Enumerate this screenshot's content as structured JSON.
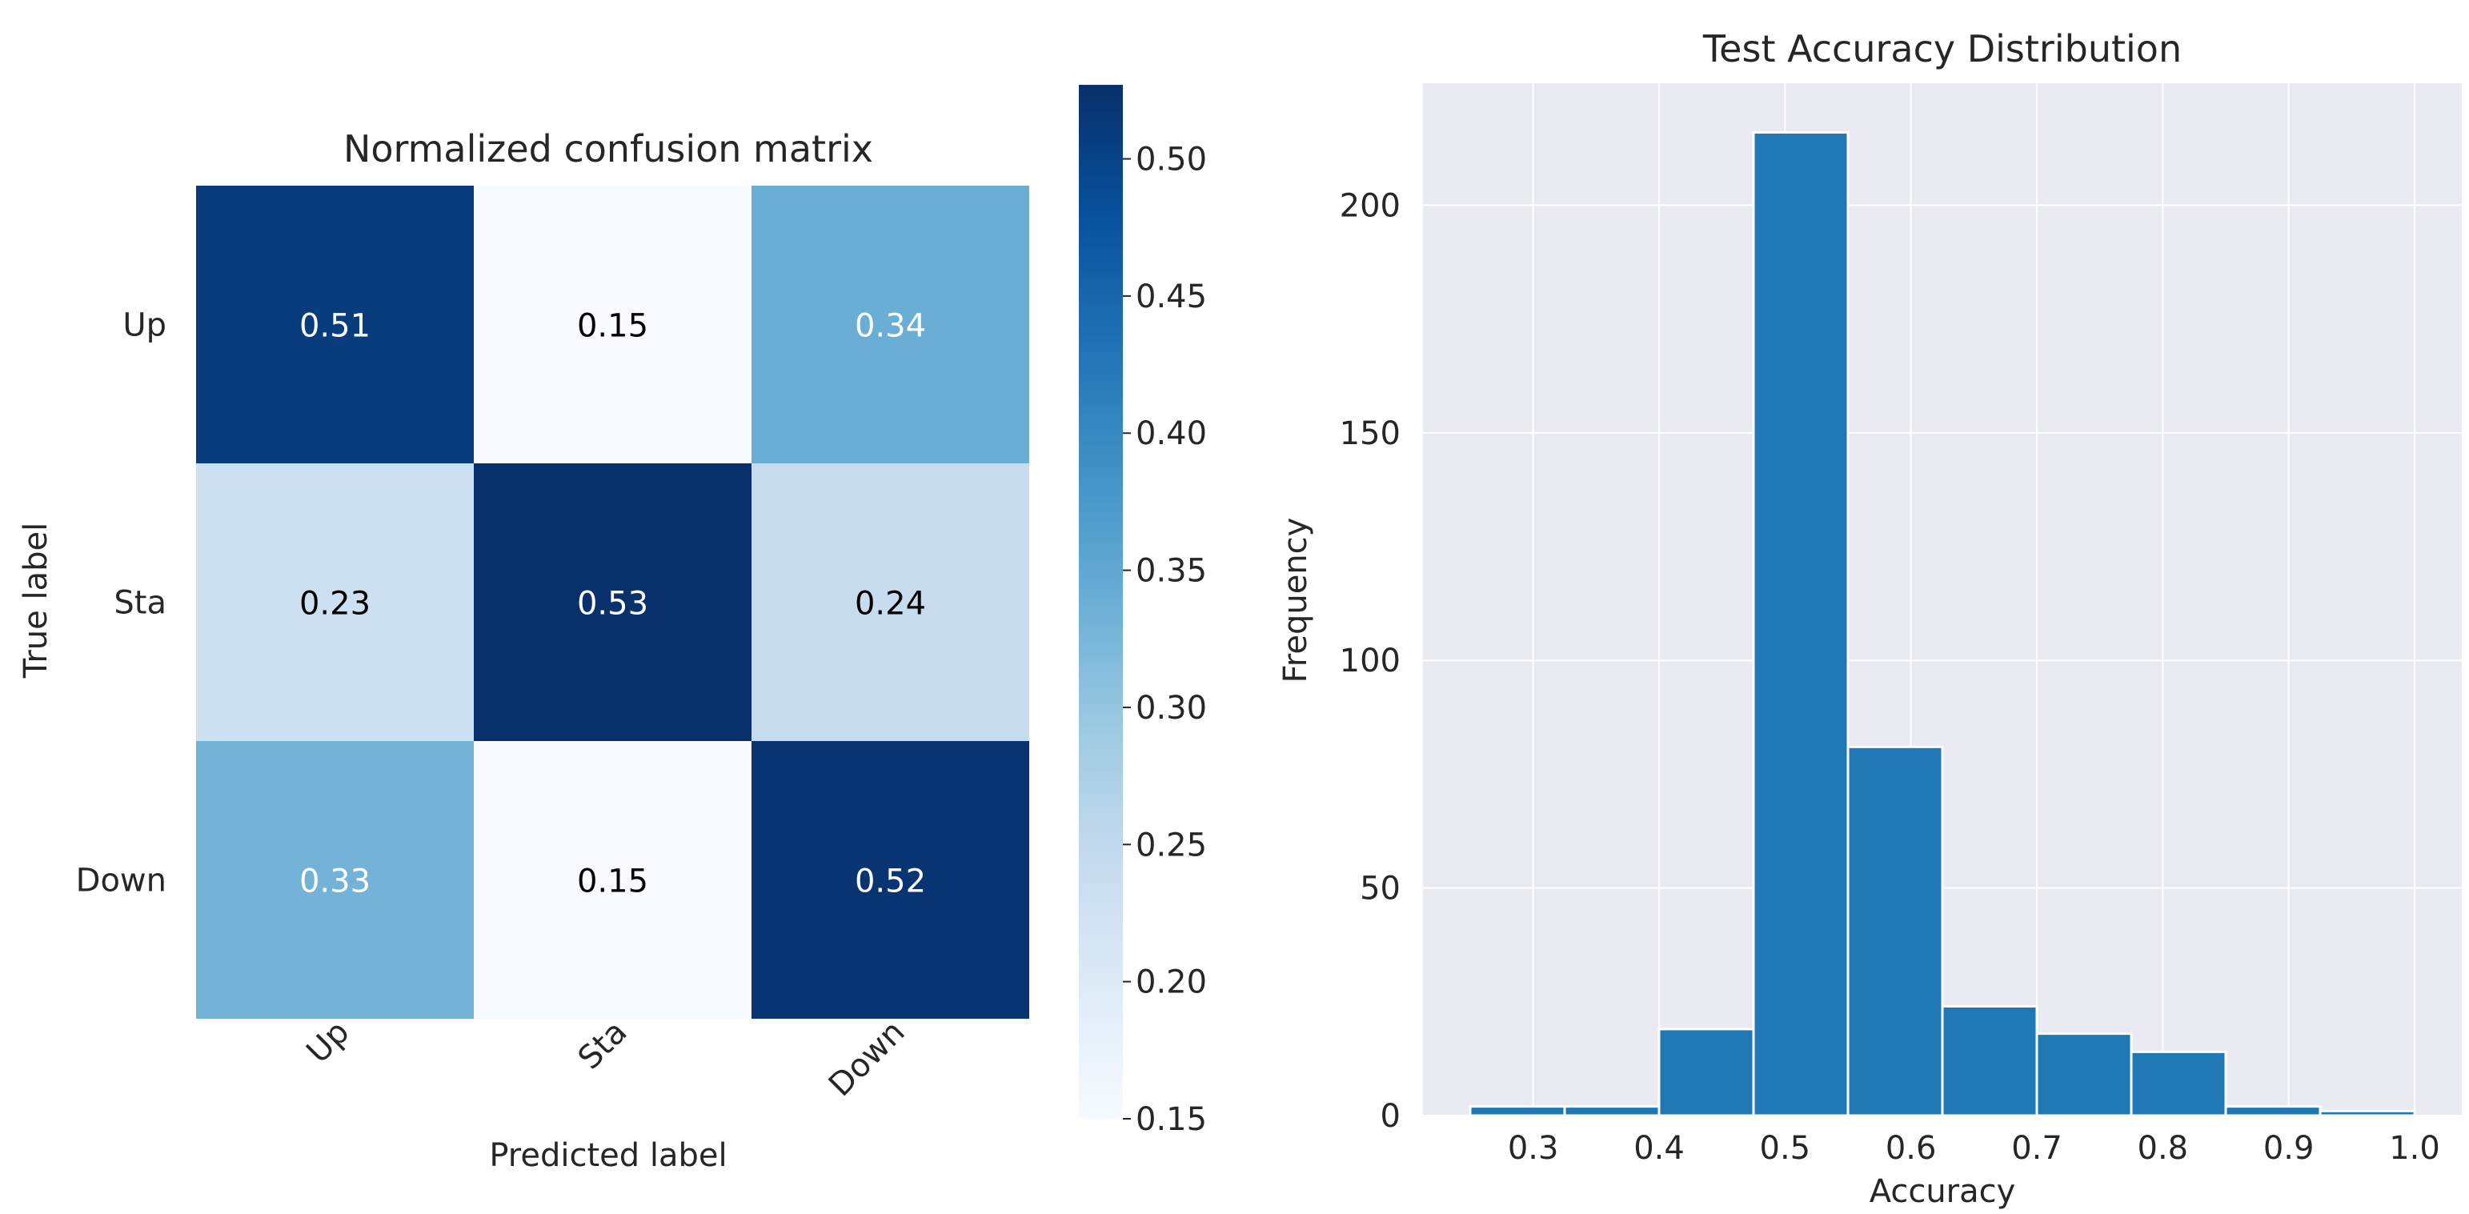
{
  "chart_data": [
    {
      "type": "heatmap",
      "title": "Normalized confusion matrix",
      "xlabel": "Predicted label",
      "ylabel": "True label",
      "x_categories": [
        "Up",
        "Sta",
        "Down"
      ],
      "y_categories": [
        "Up",
        "Sta",
        "Down"
      ],
      "values": [
        [
          0.51,
          0.15,
          0.34
        ],
        [
          0.23,
          0.53,
          0.24
        ],
        [
          0.33,
          0.15,
          0.52
        ]
      ],
      "colormap": "Blues",
      "colorbar": {
        "range": [
          0.15,
          0.527
        ],
        "ticks": [
          "0.15",
          "0.20",
          "0.25",
          "0.30",
          "0.35",
          "0.40",
          "0.45",
          "0.50"
        ]
      }
    },
    {
      "type": "bar",
      "subtype": "histogram",
      "title": "Test Accuracy Distribution",
      "xlabel": "Accuracy",
      "ylabel": "Frequency",
      "bin_edges": [
        0.25,
        0.325,
        0.4,
        0.475,
        0.55,
        0.625,
        0.7,
        0.775,
        0.85,
        0.925,
        1.0
      ],
      "values": [
        2,
        2,
        19,
        216,
        81,
        24,
        18,
        14,
        2,
        1
      ],
      "xlim": [
        0.2125,
        1.0375
      ],
      "ylim": [
        0,
        226.8
      ],
      "xticks": [
        "0.3",
        "0.4",
        "0.5",
        "0.6",
        "0.7",
        "0.8",
        "0.9",
        "1.0"
      ],
      "yticks": [
        "0",
        "50",
        "100",
        "150",
        "200"
      ],
      "bar_color": "#1f77b4",
      "background": "#eaeaf2",
      "grid": true
    }
  ]
}
